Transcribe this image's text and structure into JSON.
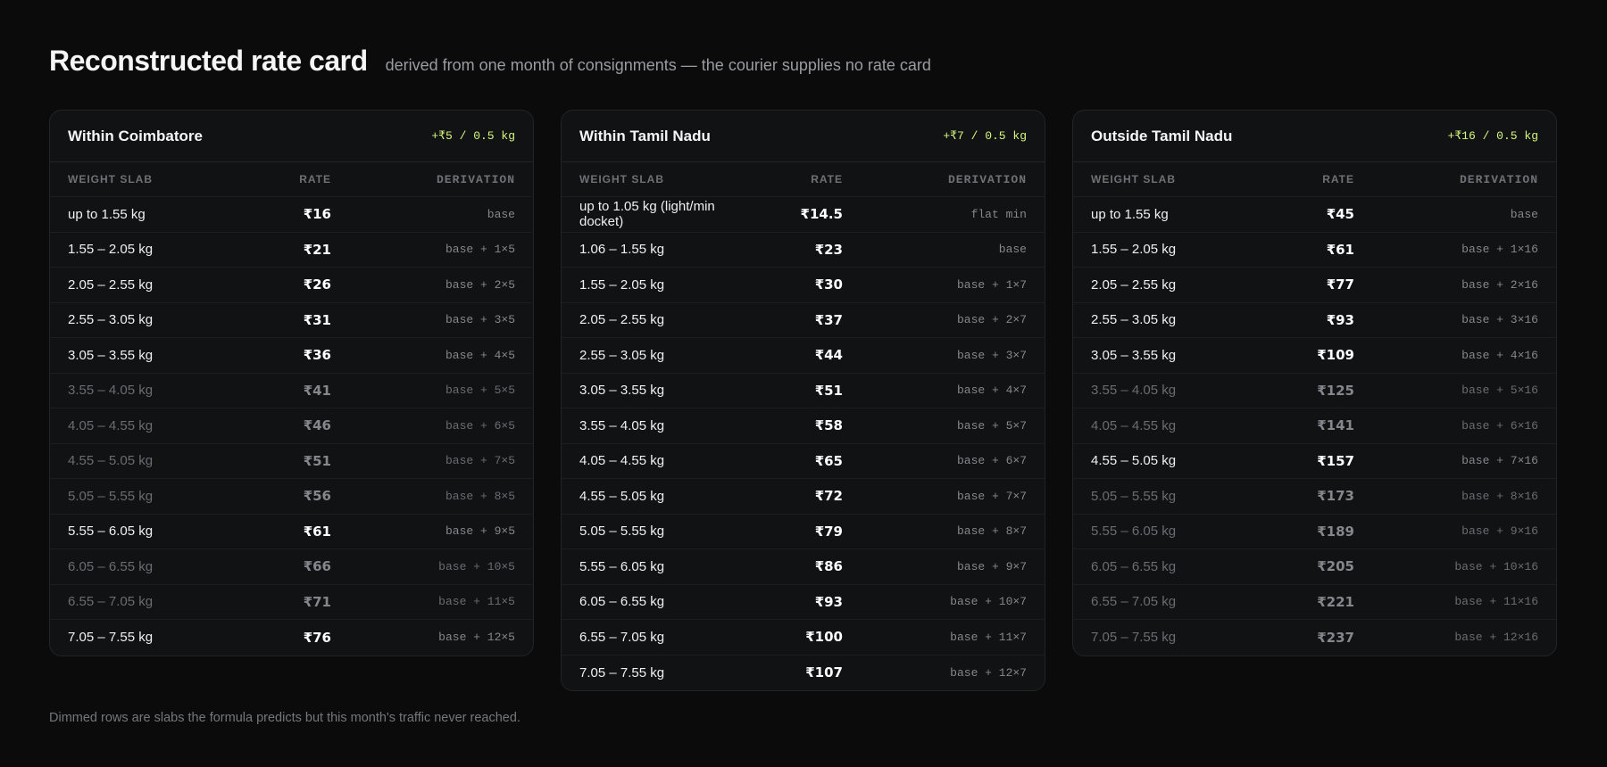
{
  "header": {
    "title": "Reconstructed rate card",
    "subtitle": "derived from one month of consignments — the courier supplies no rate card"
  },
  "cards": [
    {
      "title": "Within Coimbatore",
      "increment": "+₹5 / 0.5 kg",
      "columns": [
        "WEIGHT SLAB",
        "RATE",
        "DERIVATION"
      ],
      "rows": [
        {
          "slab": "up to 1.55 kg",
          "rate": "₹16",
          "derivation": "base",
          "dimmed": false
        },
        {
          "slab": "1.55 – 2.05 kg",
          "rate": "₹21",
          "derivation": "base + 1×5",
          "dimmed": false
        },
        {
          "slab": "2.05 – 2.55 kg",
          "rate": "₹26",
          "derivation": "base + 2×5",
          "dimmed": false
        },
        {
          "slab": "2.55 – 3.05 kg",
          "rate": "₹31",
          "derivation": "base + 3×5",
          "dimmed": false
        },
        {
          "slab": "3.05 – 3.55 kg",
          "rate": "₹36",
          "derivation": "base + 4×5",
          "dimmed": false
        },
        {
          "slab": "3.55 – 4.05 kg",
          "rate": "₹41",
          "derivation": "base + 5×5",
          "dimmed": true
        },
        {
          "slab": "4.05 – 4.55 kg",
          "rate": "₹46",
          "derivation": "base + 6×5",
          "dimmed": true
        },
        {
          "slab": "4.55 – 5.05 kg",
          "rate": "₹51",
          "derivation": "base + 7×5",
          "dimmed": true
        },
        {
          "slab": "5.05 – 5.55 kg",
          "rate": "₹56",
          "derivation": "base + 8×5",
          "dimmed": true
        },
        {
          "slab": "5.55 – 6.05 kg",
          "rate": "₹61",
          "derivation": "base + 9×5",
          "dimmed": false
        },
        {
          "slab": "6.05 – 6.55 kg",
          "rate": "₹66",
          "derivation": "base + 10×5",
          "dimmed": true
        },
        {
          "slab": "6.55 – 7.05 kg",
          "rate": "₹71",
          "derivation": "base + 11×5",
          "dimmed": true
        },
        {
          "slab": "7.05 – 7.55 kg",
          "rate": "₹76",
          "derivation": "base + 12×5",
          "dimmed": false
        }
      ]
    },
    {
      "title": "Within Tamil Nadu",
      "increment": "+₹7 / 0.5 kg",
      "columns": [
        "WEIGHT SLAB",
        "RATE",
        "DERIVATION"
      ],
      "rows": [
        {
          "slab": "up to 1.05 kg (light/min docket)",
          "rate": "₹14.5",
          "derivation": "flat min",
          "dimmed": false
        },
        {
          "slab": "1.06 – 1.55 kg",
          "rate": "₹23",
          "derivation": "base",
          "dimmed": false
        },
        {
          "slab": "1.55 – 2.05 kg",
          "rate": "₹30",
          "derivation": "base + 1×7",
          "dimmed": false
        },
        {
          "slab": "2.05 – 2.55 kg",
          "rate": "₹37",
          "derivation": "base + 2×7",
          "dimmed": false
        },
        {
          "slab": "2.55 – 3.05 kg",
          "rate": "₹44",
          "derivation": "base + 3×7",
          "dimmed": false
        },
        {
          "slab": "3.05 – 3.55 kg",
          "rate": "₹51",
          "derivation": "base + 4×7",
          "dimmed": false
        },
        {
          "slab": "3.55 – 4.05 kg",
          "rate": "₹58",
          "derivation": "base + 5×7",
          "dimmed": false
        },
        {
          "slab": "4.05 – 4.55 kg",
          "rate": "₹65",
          "derivation": "base + 6×7",
          "dimmed": false
        },
        {
          "slab": "4.55 – 5.05 kg",
          "rate": "₹72",
          "derivation": "base + 7×7",
          "dimmed": false
        },
        {
          "slab": "5.05 – 5.55 kg",
          "rate": "₹79",
          "derivation": "base + 8×7",
          "dimmed": false
        },
        {
          "slab": "5.55 – 6.05 kg",
          "rate": "₹86",
          "derivation": "base + 9×7",
          "dimmed": false
        },
        {
          "slab": "6.05 – 6.55 kg",
          "rate": "₹93",
          "derivation": "base + 10×7",
          "dimmed": false
        },
        {
          "slab": "6.55 – 7.05 kg",
          "rate": "₹100",
          "derivation": "base + 11×7",
          "dimmed": false
        },
        {
          "slab": "7.05 – 7.55 kg",
          "rate": "₹107",
          "derivation": "base + 12×7",
          "dimmed": false
        }
      ]
    },
    {
      "title": "Outside Tamil Nadu",
      "increment": "+₹16 / 0.5 kg",
      "columns": [
        "WEIGHT SLAB",
        "RATE",
        "DERIVATION"
      ],
      "rows": [
        {
          "slab": "up to 1.55 kg",
          "rate": "₹45",
          "derivation": "base",
          "dimmed": false
        },
        {
          "slab": "1.55 – 2.05 kg",
          "rate": "₹61",
          "derivation": "base + 1×16",
          "dimmed": false
        },
        {
          "slab": "2.05 – 2.55 kg",
          "rate": "₹77",
          "derivation": "base + 2×16",
          "dimmed": false
        },
        {
          "slab": "2.55 – 3.05 kg",
          "rate": "₹93",
          "derivation": "base + 3×16",
          "dimmed": false
        },
        {
          "slab": "3.05 – 3.55 kg",
          "rate": "₹109",
          "derivation": "base + 4×16",
          "dimmed": false
        },
        {
          "slab": "3.55 – 4.05 kg",
          "rate": "₹125",
          "derivation": "base + 5×16",
          "dimmed": true
        },
        {
          "slab": "4.05 – 4.55 kg",
          "rate": "₹141",
          "derivation": "base + 6×16",
          "dimmed": true
        },
        {
          "slab": "4.55 – 5.05 kg",
          "rate": "₹157",
          "derivation": "base + 7×16",
          "dimmed": false
        },
        {
          "slab": "5.05 – 5.55 kg",
          "rate": "₹173",
          "derivation": "base + 8×16",
          "dimmed": true
        },
        {
          "slab": "5.55 – 6.05 kg",
          "rate": "₹189",
          "derivation": "base + 9×16",
          "dimmed": true
        },
        {
          "slab": "6.05 – 6.55 kg",
          "rate": "₹205",
          "derivation": "base + 10×16",
          "dimmed": true
        },
        {
          "slab": "6.55 – 7.05 kg",
          "rate": "₹221",
          "derivation": "base + 11×16",
          "dimmed": true
        },
        {
          "slab": "7.05 – 7.55 kg",
          "rate": "₹237",
          "derivation": "base + 12×16",
          "dimmed": true
        }
      ]
    }
  ],
  "footer": {
    "note": "Dimmed rows are slabs the formula predicts but this month's traffic never reached."
  }
}
